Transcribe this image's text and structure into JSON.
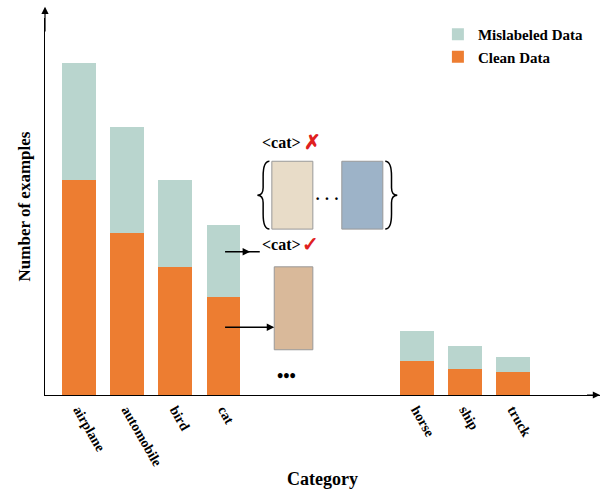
{
  "chart_data": {
    "type": "bar",
    "stacked": true,
    "x_label": "Category",
    "y_label": "Number of examples",
    "categories": [
      "airplane",
      "automobile",
      "bird",
      "cat",
      null,
      null,
      null,
      "horse",
      "ship",
      "truck"
    ],
    "series": [
      {
        "name": "Clean Data",
        "color": "#ED7D31",
        "values": [
          57,
          43,
          34,
          26,
          null,
          null,
          null,
          9,
          7,
          6
        ]
      },
      {
        "name": "Mislabeled Data",
        "color": "#B9D5CE",
        "values": [
          31,
          28,
          23,
          19,
          null,
          null,
          null,
          8,
          6,
          4
        ]
      }
    ],
    "ylim": [
      0,
      100
    ],
    "yticks": [],
    "tick_labels": "x",
    "legend": "top-right",
    "annotations": [
      "<cat>",
      "✗",
      "<cat>",
      "✓",
      "· · ·",
      "•••"
    ]
  }
}
